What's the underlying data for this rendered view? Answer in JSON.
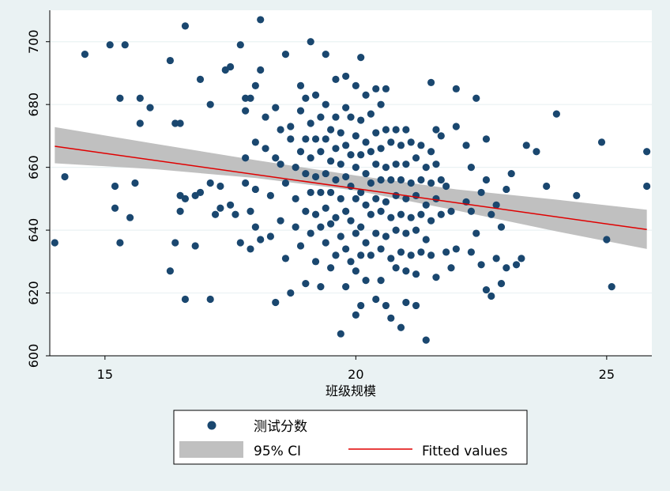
{
  "chart_data": {
    "type": "scatter",
    "title": "",
    "xlabel": "班级规模",
    "ylabel": "",
    "xlim": [
      13.9,
      25.9
    ],
    "ylim": [
      600,
      710
    ],
    "xticks": [
      15,
      20,
      25
    ],
    "yticks": [
      600,
      620,
      640,
      660,
      680,
      700
    ],
    "grid": "horizontal",
    "legend_position": "bottom",
    "colors": {
      "background": "#eaf2f3",
      "plot_background": "#ffffff",
      "grid": "#eaf2f3",
      "points": "#1a476f",
      "ci_band": "#c0c0c0",
      "fit_line": "#e00000"
    },
    "series": [
      {
        "name": "测试分数",
        "type": "scatter",
        "points": [
          [
            14.0,
            636
          ],
          [
            14.2,
            657
          ],
          [
            14.6,
            696
          ],
          [
            15.1,
            699
          ],
          [
            15.2,
            647
          ],
          [
            15.2,
            654
          ],
          [
            15.3,
            682
          ],
          [
            15.3,
            636
          ],
          [
            15.4,
            699
          ],
          [
            15.5,
            644
          ],
          [
            15.6,
            655
          ],
          [
            15.7,
            674
          ],
          [
            15.7,
            682
          ],
          [
            15.9,
            679
          ],
          [
            16.3,
            627
          ],
          [
            16.3,
            694
          ],
          [
            16.4,
            674
          ],
          [
            16.4,
            636
          ],
          [
            16.5,
            651
          ],
          [
            16.5,
            674
          ],
          [
            16.5,
            646
          ],
          [
            16.6,
            705
          ],
          [
            16.6,
            618
          ],
          [
            16.6,
            650
          ],
          [
            16.8,
            635
          ],
          [
            16.8,
            651
          ],
          [
            16.9,
            688
          ],
          [
            16.9,
            652
          ],
          [
            17.1,
            680
          ],
          [
            17.1,
            618
          ],
          [
            17.1,
            655
          ],
          [
            17.2,
            645
          ],
          [
            17.3,
            654
          ],
          [
            17.3,
            647
          ],
          [
            17.4,
            691
          ],
          [
            17.5,
            648
          ],
          [
            17.5,
            692
          ],
          [
            17.6,
            645
          ],
          [
            17.7,
            699
          ],
          [
            17.7,
            636
          ],
          [
            17.8,
            678
          ],
          [
            17.8,
            682
          ],
          [
            17.8,
            663
          ],
          [
            17.8,
            655
          ],
          [
            17.9,
            646
          ],
          [
            17.9,
            634
          ],
          [
            17.9,
            682
          ],
          [
            18.0,
            686
          ],
          [
            18.0,
            668
          ],
          [
            18.0,
            653
          ],
          [
            18.0,
            641
          ],
          [
            18.1,
            637
          ],
          [
            18.1,
            691
          ],
          [
            18.1,
            707
          ],
          [
            18.2,
            676
          ],
          [
            18.2,
            666
          ],
          [
            18.3,
            651
          ],
          [
            18.3,
            638
          ],
          [
            18.4,
            617
          ],
          [
            18.4,
            663
          ],
          [
            18.4,
            679
          ],
          [
            18.5,
            672
          ],
          [
            18.5,
            661
          ],
          [
            18.5,
            643
          ],
          [
            18.6,
            696
          ],
          [
            18.6,
            655
          ],
          [
            18.6,
            631
          ],
          [
            18.7,
            673
          ],
          [
            18.7,
            620
          ],
          [
            18.7,
            669
          ],
          [
            18.8,
            641
          ],
          [
            18.8,
            660
          ],
          [
            18.8,
            650
          ],
          [
            18.9,
            686
          ],
          [
            18.9,
            678
          ],
          [
            18.9,
            665
          ],
          [
            18.9,
            635
          ],
          [
            19.0,
            682
          ],
          [
            19.0,
            669
          ],
          [
            19.0,
            658
          ],
          [
            19.0,
            646
          ],
          [
            19.0,
            623
          ],
          [
            19.1,
            700
          ],
          [
            19.1,
            674
          ],
          [
            19.1,
            663
          ],
          [
            19.1,
            652
          ],
          [
            19.1,
            639
          ],
          [
            19.2,
            683
          ],
          [
            19.2,
            669
          ],
          [
            19.2,
            657
          ],
          [
            19.2,
            645
          ],
          [
            19.2,
            630
          ],
          [
            19.3,
            676
          ],
          [
            19.3,
            665
          ],
          [
            19.3,
            652
          ],
          [
            19.3,
            641
          ],
          [
            19.3,
            622
          ],
          [
            19.4,
            696
          ],
          [
            19.4,
            680
          ],
          [
            19.4,
            669
          ],
          [
            19.4,
            658
          ],
          [
            19.4,
            647
          ],
          [
            19.4,
            636
          ],
          [
            19.5,
            672
          ],
          [
            19.5,
            662
          ],
          [
            19.5,
            652
          ],
          [
            19.5,
            642
          ],
          [
            19.5,
            628
          ],
          [
            19.6,
            688
          ],
          [
            19.6,
            676
          ],
          [
            19.6,
            666
          ],
          [
            19.6,
            656
          ],
          [
            19.6,
            644
          ],
          [
            19.6,
            632
          ],
          [
            19.7,
            671
          ],
          [
            19.7,
            661
          ],
          [
            19.7,
            650
          ],
          [
            19.7,
            638
          ],
          [
            19.7,
            607
          ],
          [
            19.8,
            689
          ],
          [
            19.8,
            679
          ],
          [
            19.8,
            667
          ],
          [
            19.8,
            657
          ],
          [
            19.8,
            646
          ],
          [
            19.8,
            634
          ],
          [
            19.8,
            622
          ],
          [
            19.9,
            676
          ],
          [
            19.9,
            664
          ],
          [
            19.9,
            654
          ],
          [
            19.9,
            643
          ],
          [
            19.9,
            630
          ],
          [
            20.0,
            686
          ],
          [
            20.0,
            670
          ],
          [
            20.0,
            660
          ],
          [
            20.0,
            650
          ],
          [
            20.0,
            639
          ],
          [
            20.0,
            627
          ],
          [
            20.0,
            613
          ],
          [
            20.1,
            695
          ],
          [
            20.1,
            675
          ],
          [
            20.1,
            664
          ],
          [
            20.1,
            652
          ],
          [
            20.1,
            641
          ],
          [
            20.1,
            632
          ],
          [
            20.1,
            616
          ],
          [
            20.2,
            683
          ],
          [
            20.2,
            668
          ],
          [
            20.2,
            658
          ],
          [
            20.2,
            648
          ],
          [
            20.2,
            636
          ],
          [
            20.2,
            624
          ],
          [
            20.3,
            677
          ],
          [
            20.3,
            665
          ],
          [
            20.3,
            655
          ],
          [
            20.3,
            645
          ],
          [
            20.3,
            632
          ],
          [
            20.4,
            685
          ],
          [
            20.4,
            671
          ],
          [
            20.4,
            661
          ],
          [
            20.4,
            650
          ],
          [
            20.4,
            639
          ],
          [
            20.4,
            618
          ],
          [
            20.5,
            680
          ],
          [
            20.5,
            666
          ],
          [
            20.5,
            656
          ],
          [
            20.5,
            646
          ],
          [
            20.5,
            634
          ],
          [
            20.5,
            624
          ],
          [
            20.6,
            685
          ],
          [
            20.6,
            672
          ],
          [
            20.6,
            660
          ],
          [
            20.6,
            649
          ],
          [
            20.6,
            638
          ],
          [
            20.6,
            616
          ],
          [
            20.7,
            668
          ],
          [
            20.7,
            656
          ],
          [
            20.7,
            644
          ],
          [
            20.7,
            631
          ],
          [
            20.7,
            612
          ],
          [
            20.8,
            672
          ],
          [
            20.8,
            661
          ],
          [
            20.8,
            651
          ],
          [
            20.8,
            640
          ],
          [
            20.8,
            628
          ],
          [
            20.9,
            667
          ],
          [
            20.9,
            656
          ],
          [
            20.9,
            645
          ],
          [
            20.9,
            633
          ],
          [
            20.9,
            609
          ],
          [
            21.0,
            672
          ],
          [
            21.0,
            661
          ],
          [
            21.0,
            650
          ],
          [
            21.0,
            639
          ],
          [
            21.0,
            627
          ],
          [
            21.0,
            617
          ],
          [
            21.1,
            668
          ],
          [
            21.1,
            655
          ],
          [
            21.1,
            644
          ],
          [
            21.1,
            632
          ],
          [
            21.2,
            663
          ],
          [
            21.2,
            651
          ],
          [
            21.2,
            640
          ],
          [
            21.2,
            626
          ],
          [
            21.2,
            616
          ],
          [
            21.3,
            667
          ],
          [
            21.3,
            656
          ],
          [
            21.3,
            645
          ],
          [
            21.3,
            633
          ],
          [
            21.4,
            660
          ],
          [
            21.4,
            648
          ],
          [
            21.4,
            637
          ],
          [
            21.4,
            605
          ],
          [
            21.5,
            687
          ],
          [
            21.5,
            665
          ],
          [
            21.5,
            655
          ],
          [
            21.5,
            643
          ],
          [
            21.5,
            632
          ],
          [
            21.6,
            672
          ],
          [
            21.6,
            661
          ],
          [
            21.6,
            650
          ],
          [
            21.6,
            625
          ],
          [
            21.7,
            670
          ],
          [
            21.7,
            656
          ],
          [
            21.7,
            645
          ],
          [
            21.8,
            654
          ],
          [
            21.8,
            633
          ],
          [
            21.9,
            646
          ],
          [
            21.9,
            628
          ],
          [
            22.0,
            673
          ],
          [
            22.0,
            634
          ],
          [
            22.0,
            685
          ],
          [
            22.2,
            667
          ],
          [
            22.2,
            649
          ],
          [
            22.3,
            660
          ],
          [
            22.3,
            633
          ],
          [
            22.3,
            646
          ],
          [
            22.4,
            682
          ],
          [
            22.4,
            639
          ],
          [
            22.5,
            652
          ],
          [
            22.5,
            629
          ],
          [
            22.6,
            656
          ],
          [
            22.6,
            669
          ],
          [
            22.6,
            621
          ],
          [
            22.7,
            645
          ],
          [
            22.7,
            619
          ],
          [
            22.8,
            648
          ],
          [
            22.8,
            631
          ],
          [
            22.9,
            623
          ],
          [
            22.9,
            641
          ],
          [
            23.0,
            628
          ],
          [
            23.0,
            653
          ],
          [
            23.1,
            658
          ],
          [
            23.2,
            629
          ],
          [
            23.3,
            631
          ],
          [
            23.4,
            667
          ],
          [
            23.6,
            665
          ],
          [
            23.8,
            654
          ],
          [
            24.0,
            677
          ],
          [
            24.4,
            651
          ],
          [
            24.9,
            668
          ],
          [
            25.0,
            637
          ],
          [
            25.1,
            622
          ],
          [
            25.8,
            665
          ],
          [
            25.8,
            654
          ]
        ]
      },
      {
        "name": "95% CI",
        "type": "area",
        "x": [
          14.0,
          16.0,
          18.0,
          20.0,
          22.0,
          24.0,
          25.8
        ],
        "upper": [
          672.8,
          667.5,
          662.3,
          657.4,
          653.0,
          649.7,
          646.5
        ],
        "lower": [
          661.3,
          659.4,
          656.6,
          652.6,
          646.3,
          639.6,
          634.0
        ]
      },
      {
        "name": "Fitted values",
        "type": "line",
        "x": [
          14.0,
          25.8
        ],
        "y": [
          666.7,
          640.2
        ]
      }
    ],
    "legend": [
      {
        "label": "测试分数",
        "kind": "marker"
      },
      {
        "label": "95% CI",
        "kind": "band"
      },
      {
        "label": "Fitted values",
        "kind": "line"
      }
    ]
  }
}
